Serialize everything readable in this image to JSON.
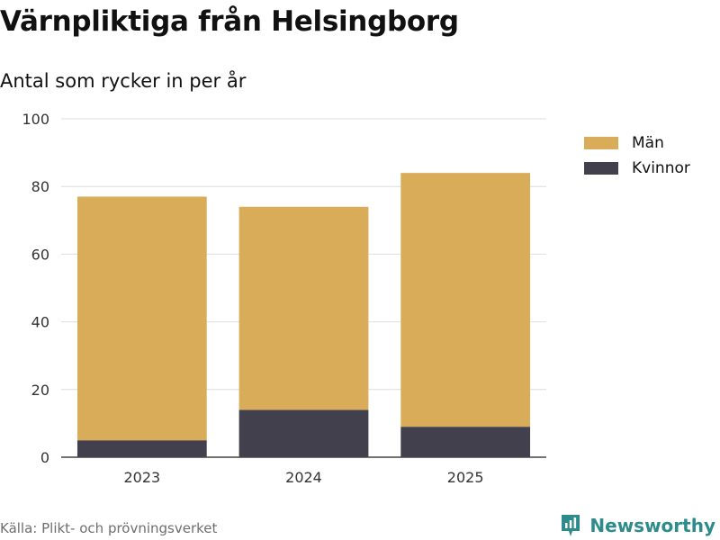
{
  "header": {
    "title": "Värnpliktiga från Helsingborg",
    "subtitle": "Antal som rycker in per år"
  },
  "chart_data": {
    "type": "bar",
    "stacked": true,
    "title": "Värnpliktiga från Helsingborg",
    "subtitle": "Antal som rycker in per år",
    "xlabel": "",
    "ylabel": "",
    "categories": [
      "2023",
      "2024",
      "2025"
    ],
    "series": [
      {
        "name": "Kvinnor",
        "values": [
          5,
          14,
          9
        ],
        "color": "#43404e"
      },
      {
        "name": "Män",
        "values": [
          72,
          60,
          75
        ],
        "color": "#d9ac59"
      }
    ],
    "ylim": [
      0,
      100
    ],
    "yticks": [
      0,
      20,
      40,
      60,
      80,
      100
    ],
    "grid": true,
    "legend_position": "right"
  },
  "legend": {
    "items": [
      {
        "label": "Män",
        "color": "#d9ac59"
      },
      {
        "label": "Kvinnor",
        "color": "#43404e"
      }
    ]
  },
  "footer": {
    "source": "Källa: Plikt- och prövningsverket",
    "brand": "Newsworthy",
    "brand_color": "#2e8b8c"
  }
}
